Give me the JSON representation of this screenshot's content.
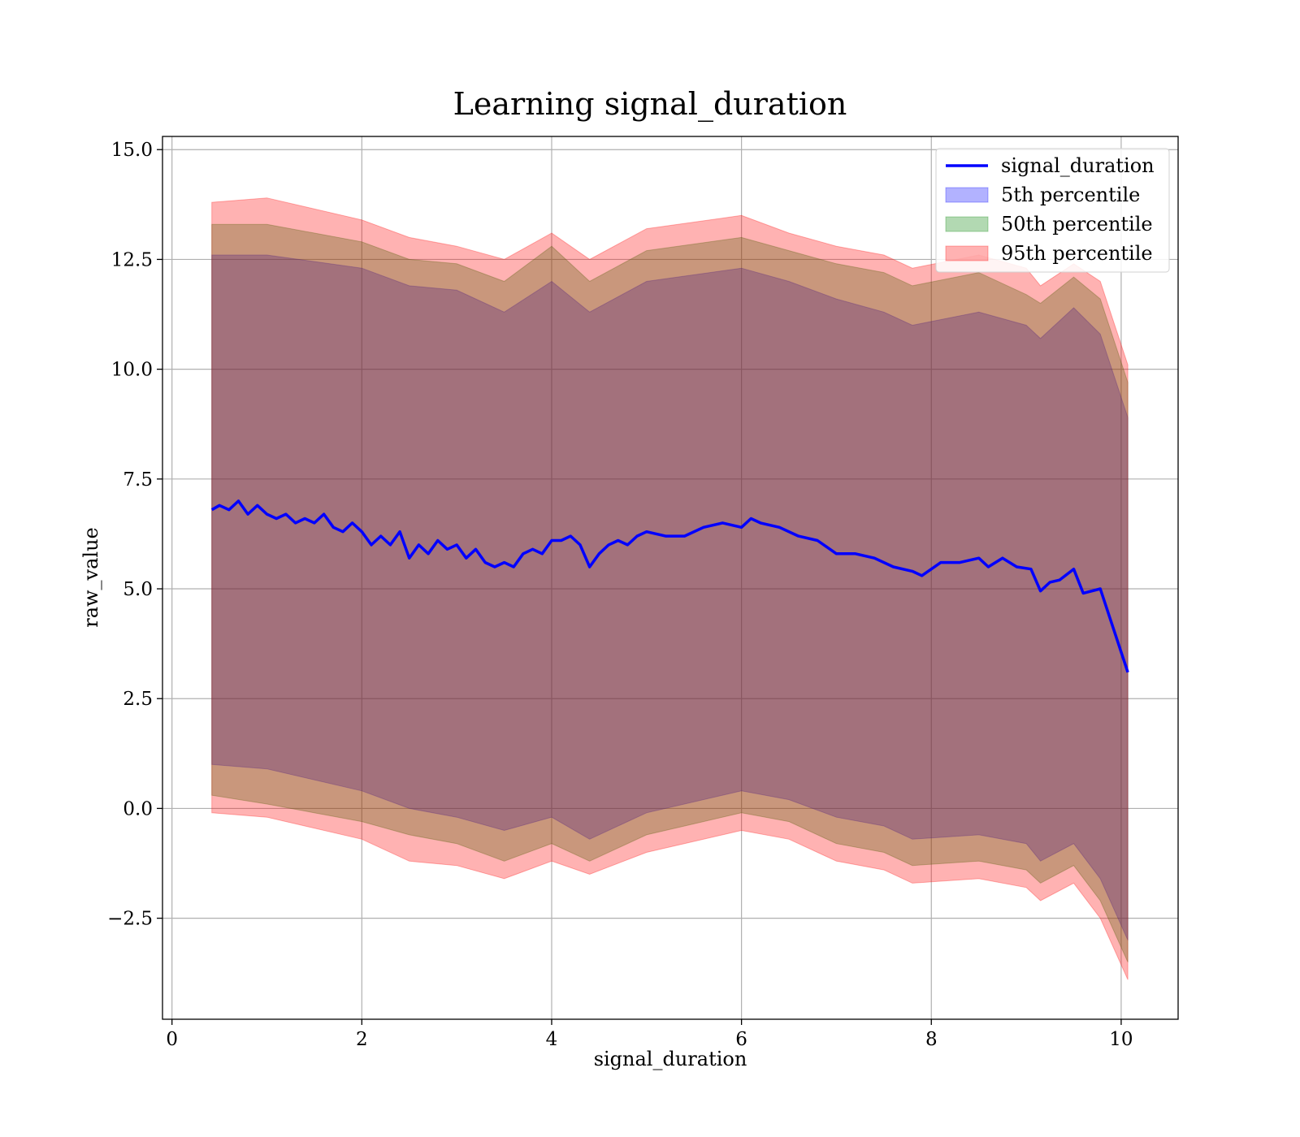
{
  "chart_data": {
    "type": "line",
    "title": "Learning signal_duration",
    "xlabel": "signal_duration",
    "ylabel": "raw_value",
    "xlim": [
      -0.1,
      10.6
    ],
    "ylim": [
      -4.8,
      15.3
    ],
    "xticks": [
      0,
      2,
      4,
      6,
      8,
      10
    ],
    "xtick_labels": [
      "0",
      "2",
      "4",
      "6",
      "8",
      "10"
    ],
    "yticks": [
      -2.5,
      0.0,
      2.5,
      5.0,
      7.5,
      10.0,
      12.5,
      15.0
    ],
    "ytick_labels": [
      "−2.5",
      "0.0",
      "2.5",
      "5.0",
      "7.5",
      "10.0",
      "12.5",
      "15.0"
    ],
    "grid": true,
    "legend_position": "top-right",
    "series": [
      {
        "name": "signal_duration",
        "kind": "line",
        "color": "#0000ff",
        "x": [
          0.42,
          0.5,
          0.6,
          0.7,
          0.8,
          0.9,
          1.0,
          1.1,
          1.2,
          1.3,
          1.4,
          1.5,
          1.6,
          1.7,
          1.8,
          1.9,
          2.0,
          2.1,
          2.2,
          2.3,
          2.4,
          2.5,
          2.6,
          2.7,
          2.8,
          2.9,
          3.0,
          3.1,
          3.2,
          3.3,
          3.4,
          3.5,
          3.6,
          3.7,
          3.8,
          3.9,
          4.0,
          4.1,
          4.2,
          4.3,
          4.4,
          4.5,
          4.6,
          4.7,
          4.8,
          4.9,
          5.0,
          5.2,
          5.4,
          5.6,
          5.8,
          6.0,
          6.1,
          6.2,
          6.4,
          6.6,
          6.8,
          7.0,
          7.2,
          7.4,
          7.6,
          7.8,
          7.9,
          8.1,
          8.3,
          8.5,
          8.6,
          8.75,
          8.9,
          9.05,
          9.15,
          9.25,
          9.35,
          9.5,
          9.6,
          9.78,
          10.07
        ],
        "y": [
          6.8,
          6.9,
          6.8,
          7.0,
          6.7,
          6.9,
          6.7,
          6.6,
          6.7,
          6.5,
          6.6,
          6.5,
          6.7,
          6.4,
          6.3,
          6.5,
          6.3,
          6.0,
          6.2,
          6.0,
          6.3,
          5.7,
          6.0,
          5.8,
          6.1,
          5.9,
          6.0,
          5.7,
          5.9,
          5.6,
          5.5,
          5.6,
          5.5,
          5.8,
          5.9,
          5.8,
          6.1,
          6.1,
          6.2,
          6.0,
          5.5,
          5.8,
          6.0,
          6.1,
          6.0,
          6.2,
          6.3,
          6.2,
          6.2,
          6.4,
          6.5,
          6.4,
          6.6,
          6.5,
          6.4,
          6.2,
          6.1,
          5.8,
          5.8,
          5.7,
          5.5,
          5.4,
          5.3,
          5.6,
          5.6,
          5.7,
          5.5,
          5.7,
          5.5,
          5.45,
          4.95,
          5.15,
          5.2,
          5.45,
          4.9,
          5.0,
          3.1
        ]
      },
      {
        "name": "5th percentile",
        "kind": "band",
        "color": "#0000ff",
        "opacity": 0.3,
        "x": [
          0.42,
          1.0,
          2.0,
          2.5,
          3.0,
          3.5,
          4.0,
          4.4,
          5.0,
          6.0,
          6.5,
          7.0,
          7.5,
          7.8,
          8.5,
          9.0,
          9.15,
          9.5,
          9.78,
          10.07
        ],
        "lower": [
          1.0,
          0.9,
          0.4,
          0.0,
          -0.2,
          -0.5,
          -0.2,
          -0.7,
          -0.1,
          0.4,
          0.2,
          -0.2,
          -0.4,
          -0.7,
          -0.6,
          -0.8,
          -1.2,
          -0.8,
          -1.6,
          -3.0
        ],
        "upper": [
          12.6,
          12.6,
          12.3,
          11.9,
          11.8,
          11.3,
          12.0,
          11.3,
          12.0,
          12.3,
          12.0,
          11.6,
          11.3,
          11.0,
          11.3,
          11.0,
          10.7,
          11.4,
          10.8,
          8.9
        ]
      },
      {
        "name": "50th percentile",
        "kind": "band",
        "color": "#008000",
        "opacity": 0.3,
        "x": [
          0.42,
          1.0,
          2.0,
          2.5,
          3.0,
          3.5,
          4.0,
          4.4,
          5.0,
          6.0,
          6.5,
          7.0,
          7.5,
          7.8,
          8.5,
          9.0,
          9.15,
          9.5,
          9.78,
          10.07
        ],
        "lower": [
          0.3,
          0.1,
          -0.3,
          -0.6,
          -0.8,
          -1.2,
          -0.8,
          -1.2,
          -0.6,
          -0.1,
          -0.3,
          -0.8,
          -1.0,
          -1.3,
          -1.2,
          -1.4,
          -1.7,
          -1.3,
          -2.1,
          -3.5
        ],
        "upper": [
          13.3,
          13.3,
          12.9,
          12.5,
          12.4,
          12.0,
          12.8,
          12.0,
          12.7,
          13.0,
          12.7,
          12.4,
          12.2,
          11.9,
          12.2,
          11.7,
          11.5,
          12.1,
          11.6,
          9.7
        ]
      },
      {
        "name": "95th percentile",
        "kind": "band",
        "color": "#ff0000",
        "opacity": 0.3,
        "x": [
          0.42,
          1.0,
          2.0,
          2.5,
          3.0,
          3.5,
          4.0,
          4.4,
          5.0,
          6.0,
          6.5,
          7.0,
          7.5,
          7.8,
          8.5,
          9.0,
          9.15,
          9.5,
          9.78,
          10.07
        ],
        "lower": [
          -0.1,
          -0.2,
          -0.7,
          -1.2,
          -1.3,
          -1.6,
          -1.2,
          -1.5,
          -1.0,
          -0.5,
          -0.7,
          -1.2,
          -1.4,
          -1.7,
          -1.6,
          -1.8,
          -2.1,
          -1.7,
          -2.5,
          -3.9
        ],
        "upper": [
          13.8,
          13.9,
          13.4,
          13.0,
          12.8,
          12.5,
          13.1,
          12.5,
          13.2,
          13.5,
          13.1,
          12.8,
          12.6,
          12.3,
          12.6,
          12.3,
          11.9,
          12.4,
          12.0,
          10.1
        ]
      }
    ]
  }
}
